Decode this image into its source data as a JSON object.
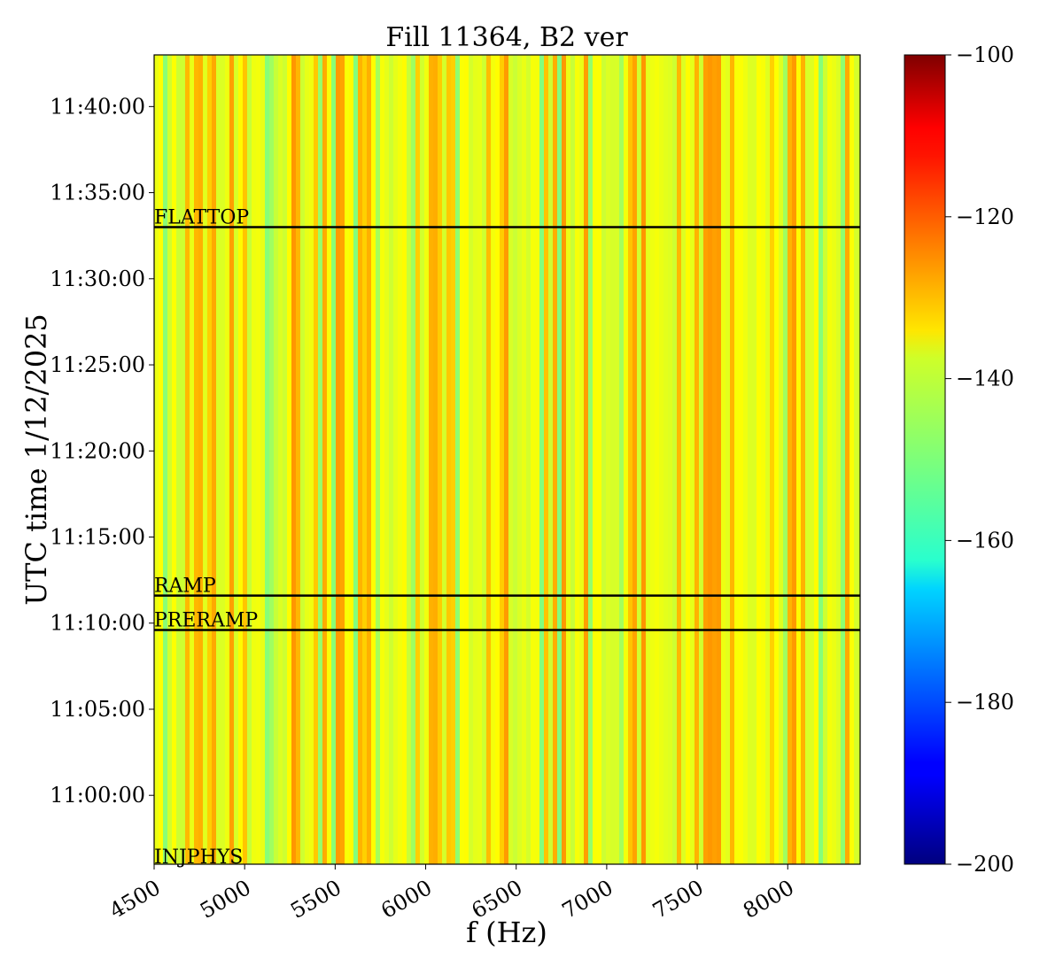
{
  "chart_data": {
    "type": "heatmap",
    "title": "Fill 11364, B2 ver",
    "xlabel": "f (Hz)",
    "ylabel": "UTC time 1/12/2025",
    "x_range_hz": [
      4500,
      8400
    ],
    "x_ticks": [
      4500,
      5000,
      5500,
      6000,
      6500,
      7000,
      7500,
      8000
    ],
    "x_tick_labels": [
      "4500",
      "5000",
      "5500",
      "6000",
      "6500",
      "7000",
      "7500",
      "8000"
    ],
    "y_range": [
      "10:56:00",
      "11:43:00"
    ],
    "y_ticks": [
      "11:00:00",
      "11:05:00",
      "11:10:00",
      "11:15:00",
      "11:20:00",
      "11:25:00",
      "11:30:00",
      "11:35:00",
      "11:40:00"
    ],
    "y_tick_labels": [
      "11:00:00",
      "11:05:00",
      "11:10:00",
      "11:15:00",
      "11:20:00",
      "11:25:00",
      "11:30:00",
      "11:35:00",
      "11:40:00"
    ],
    "colormap": "jet",
    "colorbar": {
      "range": [
        -200,
        -100
      ],
      "ticks": [
        -200,
        -180,
        -160,
        -140,
        -120,
        -100
      ],
      "tick_labels": [
        "−200",
        "−180",
        "−160",
        "−140",
        "−120",
        "−100"
      ]
    },
    "typical_level_range": [
      -150,
      -127
    ],
    "hot_band_hz": [
      7530,
      7620
    ],
    "annotations": [
      {
        "label": "FLATTOP",
        "time": "11:33:00",
        "line": true
      },
      {
        "label": "RAMP",
        "time": "11:11:36",
        "line": true
      },
      {
        "label": "PRERAMP",
        "time": "11:09:36",
        "line": true
      },
      {
        "label": "INJPHYS",
        "time": "10:56:00",
        "line": false
      }
    ],
    "grid": false
  }
}
